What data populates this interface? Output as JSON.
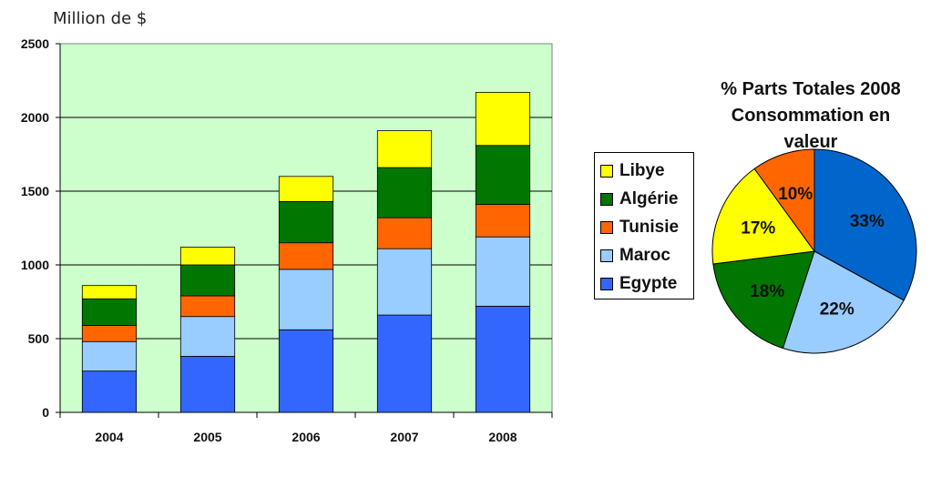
{
  "chart_data": [
    {
      "type": "bar",
      "stacked": true,
      "unit_label": "Million de $",
      "categories": [
        "2004",
        "2005",
        "2006",
        "2007",
        "2008"
      ],
      "ylim": [
        0,
        2500
      ],
      "yticks": [
        "0",
        "500",
        "1000",
        "1500",
        "2000",
        "2500"
      ],
      "grid": true,
      "plot_background": "#ccffcc",
      "series": [
        {
          "name": "Egypte",
          "color": "#3366ff",
          "values": [
            280,
            380,
            560,
            660,
            720
          ]
        },
        {
          "name": "Maroc",
          "color": "#99ccff",
          "values": [
            200,
            270,
            410,
            450,
            470
          ]
        },
        {
          "name": "Tunisie",
          "color": "#ff6600",
          "values": [
            110,
            140,
            180,
            210,
            220
          ]
        },
        {
          "name": "Algérie",
          "color": "#007700",
          "values": [
            180,
            210,
            280,
            340,
            400
          ]
        },
        {
          "name": "Libye",
          "color": "#ffff00",
          "values": [
            90,
            120,
            170,
            250,
            360
          ]
        }
      ],
      "legend_order": [
        "Libye",
        "Algérie",
        "Tunisie",
        "Maroc",
        "Egypte"
      ]
    },
    {
      "type": "pie",
      "title_lines": [
        "% Parts Totales 2008",
        "Consommation en",
        "valeur"
      ],
      "slices": [
        {
          "label": "33%",
          "value": 33,
          "color": "#0066cc"
        },
        {
          "label": "22%",
          "value": 22,
          "color": "#99ccff"
        },
        {
          "label": "18%",
          "value": 18,
          "color": "#007700"
        },
        {
          "label": "17%",
          "value": 17,
          "color": "#ffff00"
        },
        {
          "label": "10%",
          "value": 10,
          "color": "#ff6600"
        }
      ]
    }
  ]
}
